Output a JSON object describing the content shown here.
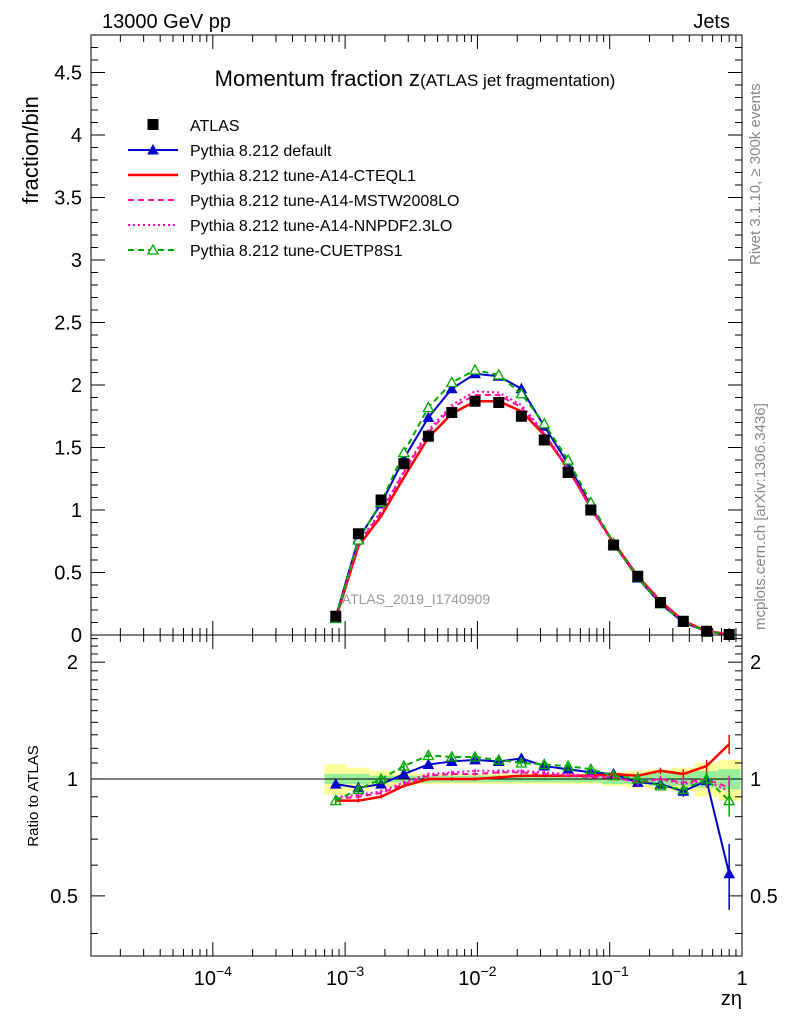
{
  "header": {
    "left": "13000 GeV pp",
    "right": "Jets"
  },
  "side_labels": {
    "rivet": "Rivet 3.1.10, ≥ 300k events",
    "mcplots": "mcplots.cern.ch [arXiv:1306.3436]"
  },
  "chart_data": {
    "type": "line",
    "title_main": "Momentum fraction z",
    "title_sub": "(ATLAS jet fragmentation)",
    "xlabel": "zη",
    "ylabel": "fraction/bin",
    "ratio_ylabel": "Ratio to ATLAS",
    "analysis_label": "ATLAS_2019_I1740909",
    "xscale": "log",
    "xlim": [
      1.2e-05,
      1.0
    ],
    "ylim": [
      0,
      4.8
    ],
    "ratio_ylim": [
      0.35,
      2.35
    ],
    "x_tick_labels": [
      {
        "base": "10",
        "exp": "−4",
        "value": 0.0001
      },
      {
        "base": "10",
        "exp": "−3",
        "value": 0.001
      },
      {
        "base": "10",
        "exp": "−2",
        "value": 0.01
      },
      {
        "base": "10",
        "exp": "−1",
        "value": 0.1
      },
      {
        "base": "1",
        "exp": "",
        "value": 1
      }
    ],
    "y_tick_labels": [
      "0",
      "0.5",
      "1",
      "1.5",
      "2",
      "2.5",
      "3",
      "3.5",
      "4",
      "4.5"
    ],
    "ratio_tick_labels": [
      "0.5",
      "1",
      "2"
    ],
    "x": [
      0.00085,
      0.00126,
      0.00187,
      0.00278,
      0.00426,
      0.0064,
      0.0096,
      0.0145,
      0.0215,
      0.032,
      0.0485,
      0.072,
      0.107,
      0.163,
      0.242,
      0.36,
      0.54,
      0.8
    ],
    "data": {
      "name": "ATLAS",
      "values": [
        0.15,
        0.81,
        1.08,
        1.37,
        1.59,
        1.78,
        1.87,
        1.86,
        1.75,
        1.56,
        1.3,
        1.0,
        0.72,
        0.47,
        0.26,
        0.11,
        0.03,
        0.004
      ]
    },
    "series": [
      {
        "name": "Pythia 8.212 default",
        "color": "#0000cc",
        "style": "solid",
        "marker": "triangle-filled",
        "values": [
          0.146,
          0.77,
          1.05,
          1.41,
          1.74,
          1.97,
          2.09,
          2.07,
          1.97,
          1.67,
          1.37,
          1.03,
          0.73,
          0.455,
          0.25,
          0.1,
          0.029,
          0.0023
        ],
        "ratio": [
          0.97,
          0.95,
          0.97,
          1.03,
          1.09,
          1.11,
          1.12,
          1.11,
          1.13,
          1.08,
          1.06,
          1.04,
          1.03,
          0.98,
          0.97,
          0.93,
          0.99,
          0.57
        ],
        "ratio_err": [
          0.02,
          0.02,
          0.02,
          0.02,
          0.02,
          0.02,
          0.02,
          0.02,
          0.02,
          0.02,
          0.02,
          0.02,
          0.02,
          0.02,
          0.02,
          0.03,
          0.04,
          0.11
        ]
      },
      {
        "name": "Pythia 8.212 tune-A14-CTEQL1",
        "color": "#ff0000",
        "style": "solid",
        "marker": "",
        "values": [
          0.13,
          0.71,
          0.95,
          1.26,
          1.58,
          1.77,
          1.87,
          1.87,
          1.79,
          1.6,
          1.33,
          1.02,
          0.74,
          0.47,
          0.27,
          0.113,
          0.032,
          0.005
        ],
        "ratio": [
          0.88,
          0.88,
          0.9,
          0.96,
          1.0,
          1.0,
          1.0,
          1.01,
          1.02,
          1.02,
          1.02,
          1.02,
          1.03,
          1.02,
          1.05,
          1.03,
          1.08,
          1.23
        ],
        "ratio_err": [
          0.01,
          0.01,
          0.01,
          0.01,
          0.01,
          0.01,
          0.01,
          0.01,
          0.01,
          0.01,
          0.01,
          0.01,
          0.01,
          0.02,
          0.02,
          0.03,
          0.04,
          0.07
        ]
      },
      {
        "name": "Pythia 8.212 tune-A14-MSTW2008LO",
        "color": "#ff1493",
        "style": "dashed",
        "marker": "",
        "values": [
          0.133,
          0.73,
          0.98,
          1.3,
          1.62,
          1.82,
          1.92,
          1.92,
          1.82,
          1.61,
          1.33,
          1.01,
          0.73,
          0.46,
          0.26,
          0.108,
          0.03,
          0.004
        ],
        "ratio": [
          0.89,
          0.9,
          0.92,
          0.97,
          1.02,
          1.03,
          1.03,
          1.04,
          1.04,
          1.03,
          1.02,
          1.01,
          1.01,
          0.98,
          1.0,
          0.98,
          1.0,
          0.95
        ],
        "ratio_err": [
          0.01,
          0.01,
          0.01,
          0.01,
          0.01,
          0.01,
          0.01,
          0.01,
          0.01,
          0.01,
          0.01,
          0.01,
          0.01,
          0.02,
          0.02,
          0.03,
          0.04,
          0.07
        ]
      },
      {
        "name": "Pythia 8.212 tune-A14-NNPDF2.3LO",
        "color": "#ff00cc",
        "style": "dotted",
        "marker": "",
        "values": [
          0.134,
          0.74,
          0.99,
          1.31,
          1.64,
          1.84,
          1.95,
          1.94,
          1.84,
          1.62,
          1.34,
          1.02,
          0.73,
          0.46,
          0.26,
          0.107,
          0.03,
          0.004
        ],
        "ratio": [
          0.9,
          0.91,
          0.93,
          0.98,
          1.03,
          1.04,
          1.05,
          1.05,
          1.05,
          1.04,
          1.03,
          1.02,
          1.01,
          0.98,
          1.0,
          0.97,
          0.99,
          0.93
        ],
        "ratio_err": [
          0.01,
          0.01,
          0.01,
          0.01,
          0.01,
          0.01,
          0.01,
          0.01,
          0.01,
          0.01,
          0.01,
          0.01,
          0.01,
          0.02,
          0.02,
          0.03,
          0.04,
          0.07
        ]
      },
      {
        "name": "Pythia 8.212 tune-CUETP8S1",
        "color": "#00aa00",
        "style": "dashed",
        "marker": "triangle-open",
        "values": [
          0.132,
          0.76,
          1.06,
          1.46,
          1.82,
          2.02,
          2.12,
          2.08,
          1.93,
          1.69,
          1.4,
          1.06,
          0.73,
          0.46,
          0.25,
          0.104,
          0.03,
          0.0035
        ],
        "ratio": [
          0.88,
          0.94,
          1.0,
          1.08,
          1.15,
          1.14,
          1.14,
          1.12,
          1.1,
          1.09,
          1.08,
          1.06,
          1.02,
          1.0,
          0.96,
          0.94,
          1.0,
          0.88
        ],
        "ratio_err": [
          0.02,
          0.02,
          0.02,
          0.02,
          0.02,
          0.02,
          0.02,
          0.02,
          0.02,
          0.02,
          0.02,
          0.02,
          0.02,
          0.02,
          0.02,
          0.03,
          0.04,
          0.08
        ]
      }
    ],
    "uncertainty_band": {
      "inner": [
        0.03,
        0.03,
        0.02,
        0.02,
        0.02,
        0.02,
        0.02,
        0.02,
        0.02,
        0.02,
        0.02,
        0.02,
        0.03,
        0.03,
        0.04,
        0.04,
        0.05,
        0.06
      ],
      "outer": [
        0.09,
        0.07,
        0.05,
        0.04,
        0.03,
        0.03,
        0.03,
        0.03,
        0.03,
        0.03,
        0.03,
        0.03,
        0.04,
        0.05,
        0.06,
        0.07,
        0.1,
        0.12
      ]
    },
    "legend_position": "top-left"
  }
}
